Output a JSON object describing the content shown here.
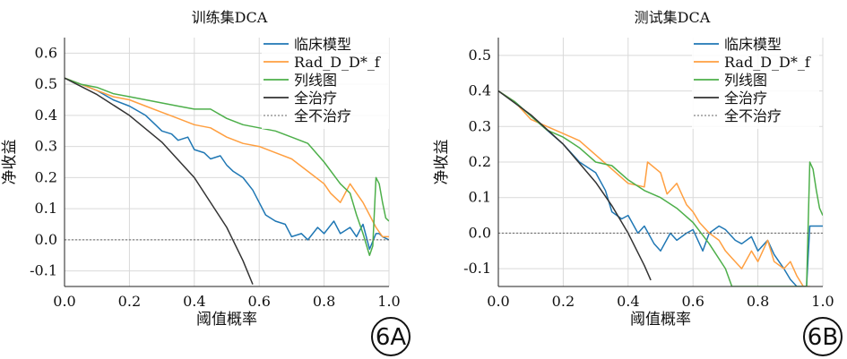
{
  "chart_data": [
    {
      "type": "line",
      "id": "A",
      "title": "训练集DCA",
      "xlabel": "阈值概率",
      "ylabel": "净收益",
      "xlim": [
        0,
        1
      ],
      "ylim": [
        -0.15,
        0.65
      ],
      "xticks": [
        "0.0",
        "0.2",
        "0.4",
        "0.6",
        "0.8",
        "1.0"
      ],
      "yticks": [
        "-0.1",
        "0.0",
        "0.1",
        "0.2",
        "0.3",
        "0.4",
        "0.5",
        "0.6"
      ],
      "grid": true,
      "legend_position": "top-right",
      "badge": "6A",
      "series": [
        {
          "name": "临床模型",
          "color": "#1f77b4",
          "x": [
            0,
            0.05,
            0.1,
            0.15,
            0.2,
            0.25,
            0.28,
            0.3,
            0.33,
            0.35,
            0.38,
            0.4,
            0.43,
            0.45,
            0.48,
            0.5,
            0.52,
            0.55,
            0.58,
            0.6,
            0.62,
            0.65,
            0.68,
            0.7,
            0.73,
            0.75,
            0.78,
            0.8,
            0.83,
            0.85,
            0.88,
            0.9,
            0.92,
            0.94,
            0.96,
            0.97,
            0.98,
            1.0
          ],
          "y": [
            0.52,
            0.5,
            0.48,
            0.45,
            0.43,
            0.4,
            0.37,
            0.35,
            0.34,
            0.32,
            0.33,
            0.29,
            0.28,
            0.26,
            0.27,
            0.24,
            0.22,
            0.2,
            0.16,
            0.12,
            0.08,
            0.06,
            0.05,
            0.01,
            0.02,
            0.0,
            0.04,
            0.02,
            0.06,
            0.02,
            0.04,
            0.01,
            0.05,
            -0.03,
            0.02,
            0.02,
            0.01,
            0.0
          ]
        },
        {
          "name": "Rad_D_D*_f",
          "color": "#ff9f40",
          "x": [
            0,
            0.05,
            0.1,
            0.15,
            0.2,
            0.25,
            0.3,
            0.35,
            0.4,
            0.45,
            0.5,
            0.55,
            0.6,
            0.65,
            0.7,
            0.75,
            0.8,
            0.82,
            0.85,
            0.88,
            0.9,
            0.92,
            0.94,
            0.96,
            0.98,
            1.0
          ],
          "y": [
            0.52,
            0.5,
            0.48,
            0.46,
            0.45,
            0.43,
            0.41,
            0.39,
            0.37,
            0.36,
            0.33,
            0.31,
            0.3,
            0.28,
            0.26,
            0.22,
            0.18,
            0.15,
            0.12,
            0.18,
            0.15,
            0.12,
            0.08,
            0.04,
            0.01,
            0.01
          ]
        },
        {
          "name": "列线图",
          "color": "#4daf4a",
          "x": [
            0,
            0.05,
            0.1,
            0.15,
            0.2,
            0.25,
            0.3,
            0.35,
            0.4,
            0.45,
            0.5,
            0.55,
            0.6,
            0.65,
            0.7,
            0.75,
            0.8,
            0.85,
            0.88,
            0.9,
            0.92,
            0.94,
            0.95,
            0.96,
            0.97,
            0.98,
            0.99,
            1.0
          ],
          "y": [
            0.52,
            0.5,
            0.49,
            0.47,
            0.46,
            0.45,
            0.44,
            0.43,
            0.42,
            0.42,
            0.39,
            0.37,
            0.36,
            0.35,
            0.33,
            0.31,
            0.25,
            0.18,
            0.15,
            0.08,
            0.02,
            -0.05,
            -0.02,
            0.2,
            0.18,
            0.12,
            0.07,
            0.06
          ]
        },
        {
          "name": "全治疗",
          "color": "#333333",
          "x": [
            0,
            0.1,
            0.2,
            0.3,
            0.4,
            0.5,
            0.55,
            0.58
          ],
          "y": [
            0.52,
            0.467,
            0.4,
            0.314,
            0.2,
            0.04,
            -0.067,
            -0.143
          ]
        },
        {
          "name": "全不治疗",
          "color": "#666666",
          "dashed": true,
          "x": [
            0,
            1
          ],
          "y": [
            0,
            0
          ]
        }
      ]
    },
    {
      "type": "line",
      "id": "B",
      "title": "测试集DCA",
      "xlabel": "阈值概率",
      "ylabel": "净收益",
      "xlim": [
        0,
        1
      ],
      "ylim": [
        -0.15,
        0.55
      ],
      "xticks": [
        "0.0",
        "0.2",
        "0.4",
        "0.6",
        "0.8",
        "1.0"
      ],
      "yticks": [
        "-0.1",
        "0.0",
        "0.1",
        "0.2",
        "0.3",
        "0.4",
        "0.5"
      ],
      "grid": true,
      "legend_position": "top-right",
      "badge": "6B",
      "series": [
        {
          "name": "临床模型",
          "color": "#1f77b4",
          "x": [
            0,
            0.05,
            0.1,
            0.15,
            0.2,
            0.25,
            0.3,
            0.33,
            0.35,
            0.38,
            0.4,
            0.43,
            0.45,
            0.48,
            0.5,
            0.53,
            0.55,
            0.58,
            0.6,
            0.63,
            0.65,
            0.68,
            0.7,
            0.73,
            0.75,
            0.78,
            0.8,
            0.83,
            0.85,
            0.88,
            0.9,
            0.92,
            0.95,
            0.96,
            0.98,
            1.0
          ],
          "y": [
            0.4,
            0.37,
            0.33,
            0.29,
            0.25,
            0.2,
            0.17,
            0.12,
            0.06,
            0.04,
            0.05,
            0.0,
            0.02,
            -0.03,
            -0.05,
            0.0,
            -0.02,
            0.0,
            0.01,
            -0.05,
            0.0,
            0.02,
            0.01,
            -0.02,
            -0.03,
            -0.01,
            -0.05,
            -0.02,
            -0.06,
            -0.1,
            -0.13,
            -0.15,
            -0.15,
            0.02,
            0.02,
            0.02
          ]
        },
        {
          "name": "Rad_D_D*_f",
          "color": "#ff9f40",
          "x": [
            0,
            0.05,
            0.1,
            0.15,
            0.2,
            0.25,
            0.3,
            0.35,
            0.4,
            0.45,
            0.46,
            0.5,
            0.52,
            0.55,
            0.58,
            0.6,
            0.62,
            0.65,
            0.68,
            0.7,
            0.72,
            0.75,
            0.78,
            0.8,
            0.83,
            0.85,
            0.88,
            0.9,
            0.92,
            0.94,
            0.96
          ],
          "y": [
            0.4,
            0.37,
            0.32,
            0.3,
            0.28,
            0.26,
            0.22,
            0.18,
            0.14,
            0.13,
            0.2,
            0.17,
            0.11,
            0.14,
            0.08,
            0.06,
            0.03,
            0.0,
            -0.02,
            -0.05,
            -0.07,
            -0.1,
            -0.05,
            -0.08,
            -0.02,
            -0.08,
            -0.1,
            -0.08,
            -0.12,
            -0.15,
            -0.15
          ]
        },
        {
          "name": "列线图",
          "color": "#4daf4a",
          "x": [
            0,
            0.05,
            0.1,
            0.15,
            0.2,
            0.25,
            0.3,
            0.35,
            0.4,
            0.45,
            0.5,
            0.55,
            0.6,
            0.65,
            0.7,
            0.72,
            0.95,
            0.96,
            0.97,
            0.98,
            0.99,
            1.0
          ],
          "y": [
            0.4,
            0.37,
            0.33,
            0.29,
            0.27,
            0.24,
            0.2,
            0.19,
            0.15,
            0.12,
            0.1,
            0.07,
            0.03,
            -0.03,
            -0.1,
            -0.15,
            -0.15,
            0.2,
            0.18,
            0.12,
            0.07,
            0.05
          ]
        },
        {
          "name": "全治疗",
          "color": "#333333",
          "x": [
            0,
            0.1,
            0.2,
            0.3,
            0.35,
            0.4,
            0.45,
            0.47
          ],
          "y": [
            0.4,
            0.333,
            0.25,
            0.143,
            0.077,
            0.0,
            -0.091,
            -0.132
          ]
        },
        {
          "name": "全不治疗",
          "color": "#666666",
          "dashed": true,
          "x": [
            0,
            1
          ],
          "y": [
            0,
            0
          ]
        }
      ]
    }
  ]
}
